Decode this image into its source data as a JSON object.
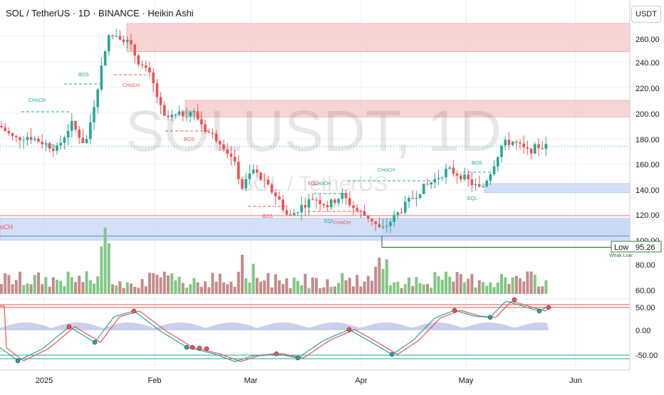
{
  "header": {
    "title": "SOL / TetherUS · 1D · BINANCE · Heikin Ashi",
    "currency": "USDT"
  },
  "watermark": {
    "symbol": "SOLUSDT, 1D",
    "name": "SOL / TetherUS"
  },
  "chart_data": {
    "type": "candlestick",
    "chart_style": "Heikin Ashi",
    "colors": {
      "up": "#26a69a",
      "down": "#ef5350",
      "volume_up": "#81c784",
      "volume_down": "#c48b8b"
    },
    "x_axis": {
      "tick_labels": [
        "2025",
        "Feb",
        "Mar",
        "Apr",
        "May",
        "Jun"
      ]
    },
    "y_axis": {
      "tick_labels": [
        "260.00",
        "240.00",
        "220.00",
        "200.00",
        "180.00",
        "160.00",
        "140.00",
        "120.00",
        "100.00",
        "80.00",
        "60.00"
      ],
      "range": [
        60,
        280
      ]
    },
    "price_range_visible": [
      95,
      295
    ],
    "last_price": 174,
    "low_label": {
      "text": "Low",
      "value": "95.26",
      "sub": "Weak Low"
    },
    "smc_labels": [
      "CHoCH",
      "BOS",
      "EQL",
      "CHoCH",
      "BOS",
      "BOS",
      "EQL",
      "CHoCH",
      "EQL",
      "BOS",
      "CHoCH",
      "EQL",
      "BOS",
      "EQL",
      "CHoCH",
      "oCH"
    ],
    "zones": [
      {
        "kind": "supply",
        "from": 248,
        "to": 270
      },
      {
        "kind": "supply",
        "from": 197,
        "to": 210
      },
      {
        "kind": "demand",
        "from": 138,
        "to": 145
      },
      {
        "kind": "demand",
        "from": 101,
        "to": 118
      }
    ],
    "oscillator": {
      "tick_labels": [
        "50.00",
        "0.00",
        "-50.00"
      ],
      "range": [
        -80,
        80
      ]
    },
    "gridlines": true
  }
}
